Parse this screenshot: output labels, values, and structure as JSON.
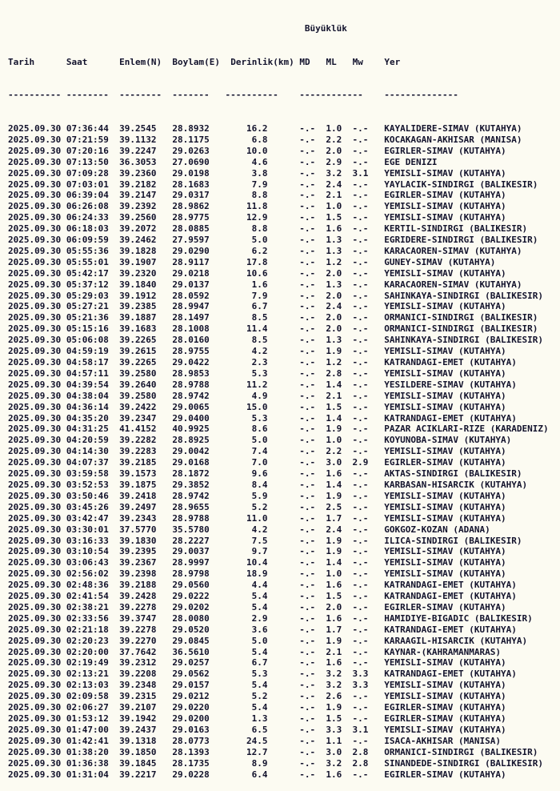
{
  "page": {
    "colors": {
      "background": "#fcfbf2",
      "text": "#12122c"
    }
  },
  "table": {
    "magnitude_group_label": "Büyüklük",
    "columns": {
      "tarih": "Tarih",
      "saat": "Saat",
      "enlem": "Enlem(N)",
      "boylam": "Boylam(E)",
      "derinlik": "Derinlik(km)",
      "md": "MD",
      "ml": "ML",
      "mw": "Mw",
      "yer": "Yer"
    },
    "separator_dash_counts": [
      10,
      8,
      8,
      7,
      10,
      12,
      14
    ],
    "row_field_order": [
      "date",
      "time",
      "latitude",
      "longitude",
      "depth_km",
      "md",
      "ml",
      "mw",
      "location"
    ],
    "rows": [
      [
        "2025.09.30",
        "07:36:44",
        "39.2545",
        "28.8932",
        "16.2",
        "-.-",
        "1.0",
        "-.-",
        "KAYALIDERE-SIMAV (KUTAHYA)"
      ],
      [
        "2025.09.30",
        "07:21:59",
        "39.1132",
        "28.1175",
        "6.8",
        "-.-",
        "2.2",
        "-.-",
        "KOCAKAGAN-AKHISAR (MANISA)"
      ],
      [
        "2025.09.30",
        "07:20:16",
        "39.2247",
        "29.0263",
        "10.0",
        "-.-",
        "2.0",
        "-.-",
        "EGIRLER-SIMAV (KUTAHYA)"
      ],
      [
        "2025.09.30",
        "07:13:50",
        "36.3053",
        "27.0690",
        "4.6",
        "-.-",
        "2.9",
        "-.-",
        "EGE DENIZI"
      ],
      [
        "2025.09.30",
        "07:09:28",
        "39.2360",
        "29.0198",
        "3.8",
        "-.-",
        "3.2",
        "3.1",
        "YEMISLI-SIMAV (KUTAHYA)"
      ],
      [
        "2025.09.30",
        "07:03:01",
        "39.2182",
        "28.1683",
        "7.9",
        "-.-",
        "2.4",
        "-.-",
        "YAYLACIK-SINDIRGI (BALIKESIR)"
      ],
      [
        "2025.09.30",
        "06:39:04",
        "39.2147",
        "29.0317",
        "8.8",
        "-.-",
        "2.1",
        "-.-",
        "EGIRLER-SIMAV (KUTAHYA)"
      ],
      [
        "2025.09.30",
        "06:26:08",
        "39.2392",
        "28.9862",
        "11.8",
        "-.-",
        "1.0",
        "-.-",
        "YEMISLI-SIMAV (KUTAHYA)"
      ],
      [
        "2025.09.30",
        "06:24:33",
        "39.2560",
        "28.9775",
        "12.9",
        "-.-",
        "1.5",
        "-.-",
        "YEMISLI-SIMAV (KUTAHYA)"
      ],
      [
        "2025.09.30",
        "06:18:03",
        "39.2072",
        "28.0885",
        "8.8",
        "-.-",
        "1.6",
        "-.-",
        "KERTIL-SINDIRGI (BALIKESIR)"
      ],
      [
        "2025.09.30",
        "06:09:59",
        "39.2462",
        "27.9597",
        "5.0",
        "-.-",
        "1.3",
        "-.-",
        "EGRIDERE-SINDIRGI (BALIKESIR)"
      ],
      [
        "2025.09.30",
        "05:55:36",
        "39.1828",
        "29.0290",
        "6.2",
        "-.-",
        "1.3",
        "-.-",
        "KARACAOREN-SIMAV (KUTAHYA)"
      ],
      [
        "2025.09.30",
        "05:55:01",
        "39.1907",
        "28.9117",
        "17.8",
        "-.-",
        "1.2",
        "-.-",
        "GUNEY-SIMAV (KUTAHYA)"
      ],
      [
        "2025.09.30",
        "05:42:17",
        "39.2320",
        "29.0218",
        "10.6",
        "-.-",
        "2.0",
        "-.-",
        "YEMISLI-SIMAV (KUTAHYA)"
      ],
      [
        "2025.09.30",
        "05:37:12",
        "39.1840",
        "29.0137",
        "1.6",
        "-.-",
        "1.3",
        "-.-",
        "KARACAOREN-SIMAV (KUTAHYA)"
      ],
      [
        "2025.09.30",
        "05:29:03",
        "39.1912",
        "28.0592",
        "7.9",
        "-.-",
        "2.0",
        "-.-",
        "SAHINKAYA-SINDIRGI (BALIKESIR)"
      ],
      [
        "2025.09.30",
        "05:27:21",
        "39.2385",
        "28.9947",
        "6.7",
        "-.-",
        "2.4",
        "-.-",
        "YEMISLI-SIMAV (KUTAHYA)"
      ],
      [
        "2025.09.30",
        "05:21:36",
        "39.1887",
        "28.1497",
        "8.5",
        "-.-",
        "2.0",
        "-.-",
        "ORMANICI-SINDIRGI (BALIKESIR)"
      ],
      [
        "2025.09.30",
        "05:15:16",
        "39.1683",
        "28.1008",
        "11.4",
        "-.-",
        "2.0",
        "-.-",
        "ORMANICI-SINDIRGI (BALIKESIR)"
      ],
      [
        "2025.09.30",
        "05:06:08",
        "39.2265",
        "28.0160",
        "8.5",
        "-.-",
        "1.3",
        "-.-",
        "SAHINKAYA-SINDIRGI (BALIKESIR)"
      ],
      [
        "2025.09.30",
        "04:59:19",
        "39.2615",
        "28.9755",
        "4.2",
        "-.-",
        "1.9",
        "-.-",
        "YEMISLI-SIMAV (KUTAHYA)"
      ],
      [
        "2025.09.30",
        "04:58:17",
        "39.2265",
        "29.0422",
        "2.3",
        "-.-",
        "1.2",
        "-.-",
        "KATRANDAGI-EMET (KUTAHYA)"
      ],
      [
        "2025.09.30",
        "04:57:11",
        "39.2580",
        "28.9853",
        "5.3",
        "-.-",
        "2.8",
        "-.-",
        "YEMISLI-SIMAV (KUTAHYA)"
      ],
      [
        "2025.09.30",
        "04:39:54",
        "39.2640",
        "28.9788",
        "11.2",
        "-.-",
        "1.4",
        "-.-",
        "YESILDERE-SIMAV (KUTAHYA)"
      ],
      [
        "2025.09.30",
        "04:38:04",
        "39.2580",
        "28.9742",
        "4.9",
        "-.-",
        "2.1",
        "-.-",
        "YEMISLI-SIMAV (KUTAHYA)"
      ],
      [
        "2025.09.30",
        "04:36:14",
        "39.2422",
        "29.0065",
        "15.0",
        "-.-",
        "1.5",
        "-.-",
        "YEMISLI-SIMAV (KUTAHYA)"
      ],
      [
        "2025.09.30",
        "04:35:20",
        "39.2347",
        "29.0400",
        "5.3",
        "-.-",
        "1.4",
        "-.-",
        "KATRANDAGI-EMET (KUTAHYA)"
      ],
      [
        "2025.09.30",
        "04:31:25",
        "41.4152",
        "40.9925",
        "8.6",
        "-.-",
        "1.9",
        "-.-",
        "PAZAR ACIKLARI-RIZE (KARADENIZ)"
      ],
      [
        "2025.09.30",
        "04:20:59",
        "39.2282",
        "28.8925",
        "5.0",
        "-.-",
        "1.0",
        "-.-",
        "KOYUNOBA-SIMAV (KUTAHYA)"
      ],
      [
        "2025.09.30",
        "04:14:30",
        "39.2283",
        "29.0042",
        "7.4",
        "-.-",
        "2.2",
        "-.-",
        "YEMISLI-SIMAV (KUTAHYA)"
      ],
      [
        "2025.09.30",
        "04:07:37",
        "39.2185",
        "29.0168",
        "7.0",
        "-.-",
        "3.0",
        "2.9",
        "EGIRLER-SIMAV (KUTAHYA)"
      ],
      [
        "2025.09.30",
        "03:59:58",
        "39.1573",
        "28.1872",
        "9.6",
        "-.-",
        "1.6",
        "-.-",
        "AKTAS-SINDIRGI (BALIKESIR)"
      ],
      [
        "2025.09.30",
        "03:52:53",
        "39.1875",
        "29.3852",
        "8.4",
        "-.-",
        "1.4",
        "-.-",
        "KARBASAN-HISARCIK (KUTAHYA)"
      ],
      [
        "2025.09.30",
        "03:50:46",
        "39.2418",
        "28.9742",
        "5.9",
        "-.-",
        "1.9",
        "-.-",
        "YEMISLI-SIMAV (KUTAHYA)"
      ],
      [
        "2025.09.30",
        "03:45:26",
        "39.2497",
        "28.9655",
        "5.2",
        "-.-",
        "2.5",
        "-.-",
        "YEMISLI-SIMAV (KUTAHYA)"
      ],
      [
        "2025.09.30",
        "03:42:47",
        "39.2343",
        "28.9788",
        "11.0",
        "-.-",
        "1.7",
        "-.-",
        "YEMISLI-SIMAV (KUTAHYA)"
      ],
      [
        "2025.09.30",
        "03:30:01",
        "37.5770",
        "35.5780",
        "4.2",
        "-.-",
        "2.4",
        "-.-",
        "GOKGOZ-KOZAN (ADANA)"
      ],
      [
        "2025.09.30",
        "03:16:33",
        "39.1830",
        "28.2227",
        "7.5",
        "-.-",
        "1.9",
        "-.-",
        "ILICA-SINDIRGI (BALIKESIR)"
      ],
      [
        "2025.09.30",
        "03:10:54",
        "39.2395",
        "29.0037",
        "9.7",
        "-.-",
        "1.9",
        "-.-",
        "YEMISLI-SIMAV (KUTAHYA)"
      ],
      [
        "2025.09.30",
        "03:06:43",
        "39.2367",
        "28.9997",
        "10.4",
        "-.-",
        "1.4",
        "-.-",
        "YEMISLI-SIMAV (KUTAHYA)"
      ],
      [
        "2025.09.30",
        "02:56:02",
        "39.2398",
        "28.9798",
        "18.9",
        "-.-",
        "1.0",
        "-.-",
        "YEMISLI-SIMAV (KUTAHYA)"
      ],
      [
        "2025.09.30",
        "02:48:36",
        "39.2188",
        "29.0560",
        "4.4",
        "-.-",
        "1.6",
        "-.-",
        "KATRANDAGI-EMET (KUTAHYA)"
      ],
      [
        "2025.09.30",
        "02:41:54",
        "39.2428",
        "29.0222",
        "5.4",
        "-.-",
        "1.5",
        "-.-",
        "KATRANDAGI-EMET (KUTAHYA)"
      ],
      [
        "2025.09.30",
        "02:38:21",
        "39.2278",
        "29.0202",
        "5.4",
        "-.-",
        "2.0",
        "-.-",
        "EGIRLER-SIMAV (KUTAHYA)"
      ],
      [
        "2025.09.30",
        "02:33:56",
        "39.3747",
        "28.0080",
        "2.9",
        "-.-",
        "1.6",
        "-.-",
        "HAMIDIYE-BIGADIC (BALIKESIR)"
      ],
      [
        "2025.09.30",
        "02:21:18",
        "39.2278",
        "29.0520",
        "3.6",
        "-.-",
        "1.7",
        "-.-",
        "KATRANDAGI-EMET (KUTAHYA)"
      ],
      [
        "2025.09.30",
        "02:20:23",
        "39.2270",
        "29.0845",
        "5.0",
        "-.-",
        "1.9",
        "-.-",
        "KARAAGIL-HISARCIK (KUTAHYA)"
      ],
      [
        "2025.09.30",
        "02:20:00",
        "37.7642",
        "36.5610",
        "5.4",
        "-.-",
        "2.1",
        "-.-",
        "KAYNAR-(KAHRAMANMARAS)"
      ],
      [
        "2025.09.30",
        "02:19:49",
        "39.2312",
        "29.0257",
        "6.7",
        "-.-",
        "1.6",
        "-.-",
        "YEMISLI-SIMAV (KUTAHYA)"
      ],
      [
        "2025.09.30",
        "02:13:21",
        "39.2208",
        "29.0562",
        "5.3",
        "-.-",
        "3.2",
        "3.3",
        "KATRANDAGI-EMET (KUTAHYA)"
      ],
      [
        "2025.09.30",
        "02:13:03",
        "39.2348",
        "29.0157",
        "5.4",
        "-.-",
        "3.2",
        "3.3",
        "YEMISLI-SIMAV (KUTAHYA)"
      ],
      [
        "2025.09.30",
        "02:09:58",
        "39.2315",
        "29.0212",
        "5.2",
        "-.-",
        "2.6",
        "-.-",
        "YEMISLI-SIMAV (KUTAHYA)"
      ],
      [
        "2025.09.30",
        "02:06:27",
        "39.2107",
        "29.0220",
        "5.4",
        "-.-",
        "1.9",
        "-.-",
        "EGIRLER-SIMAV (KUTAHYA)"
      ],
      [
        "2025.09.30",
        "01:53:12",
        "39.1942",
        "29.0200",
        "1.3",
        "-.-",
        "1.5",
        "-.-",
        "EGIRLER-SIMAV (KUTAHYA)"
      ],
      [
        "2025.09.30",
        "01:47:00",
        "39.2437",
        "29.0163",
        "6.5",
        "-.-",
        "3.3",
        "3.1",
        "YEMISLI-SIMAV (KUTAHYA)"
      ],
      [
        "2025.09.30",
        "01:42:41",
        "39.1318",
        "28.0773",
        "24.5",
        "-.-",
        "1.1",
        "-.-",
        "ISACA-AKHISAR (MANISA)"
      ],
      [
        "2025.09.30",
        "01:38:20",
        "39.1850",
        "28.1393",
        "12.7",
        "-.-",
        "3.0",
        "2.8",
        "ORMANICI-SINDIRGI (BALIKESIR)"
      ],
      [
        "2025.09.30",
        "01:36:38",
        "39.1845",
        "28.1735",
        "8.9",
        "-.-",
        "3.2",
        "2.8",
        "SINANDEDE-SINDIRGI (BALIKESIR)"
      ],
      [
        "2025.09.30",
        "01:31:04",
        "39.2217",
        "29.0228",
        "6.4",
        "-.-",
        "1.6",
        "-.-",
        "EGIRLER-SIMAV (KUTAHYA)"
      ]
    ]
  }
}
